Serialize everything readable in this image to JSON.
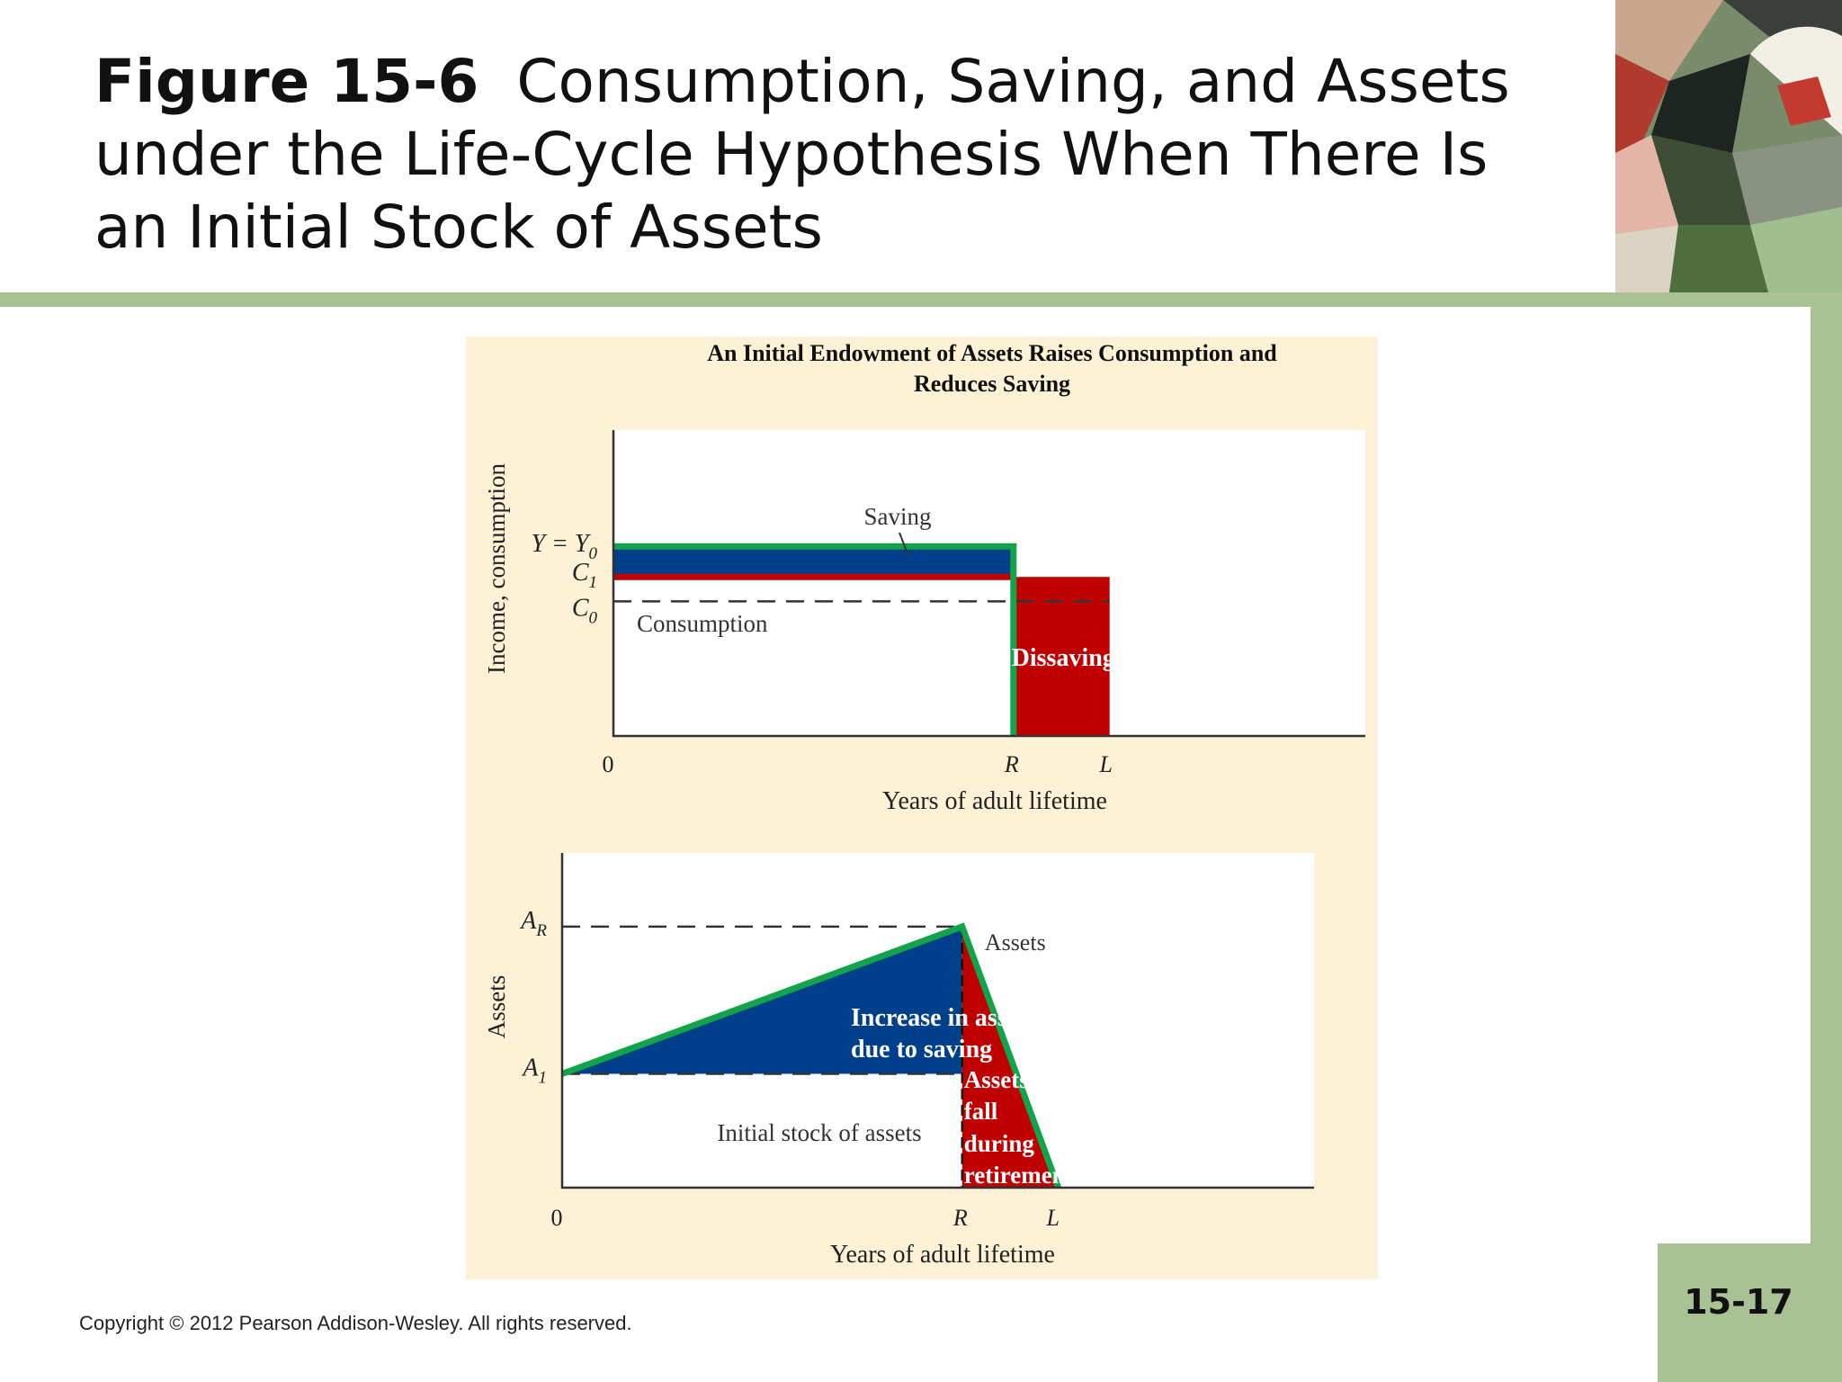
{
  "slide": {
    "figure_number": "Figure 15-6",
    "title_line1": "Consumption, Saving, and Assets",
    "title_line2": "under the Life-Cycle Hypothesis When There Is",
    "title_line3": "an Initial Stock of Assets",
    "page_number": "15-17",
    "copyright": "Copyright © 2012 Pearson Addison-Wesley. All rights reserved."
  },
  "colors": {
    "panel_bg": "#fdf2d6",
    "saving_blue": "#003f8a",
    "dissaving_red": "#c00000",
    "line_green": "#13a34b",
    "accent_green": "#a9c295"
  },
  "chart_data": [
    {
      "type": "area",
      "title_line1": "An Initial Endowment of Assets Raises Consumption and",
      "title_line2": "Reduces Saving",
      "xlabel": "Years of adult lifetime",
      "ylabel": "Income, consumption",
      "x_ticks": {
        "zero": "0",
        "r": "R",
        "l": "L"
      },
      "x_positions": {
        "zero": 0,
        "r": 0.695,
        "l": 0.862
      },
      "y_levels": {
        "income": 0.62,
        "c1": 0.52,
        "c0": 0.44
      },
      "y_labels": {
        "income": "Y = Y",
        "income_sub": "0",
        "c1": "C",
        "c1_sub": "1",
        "c0": "C",
        "c0_sub": "0"
      },
      "annotations": {
        "saving": "Saving",
        "consumption": "Consumption",
        "dissaving": "Dissaving"
      }
    },
    {
      "type": "area",
      "xlabel": "Years of adult lifetime",
      "ylabel": "Assets",
      "x_ticks": {
        "zero": "0",
        "r": "R",
        "l": "L"
      },
      "x_positions": {
        "zero": 0,
        "r": 0.695,
        "l": 0.862
      },
      "y_levels": {
        "a1": 0.34,
        "ar": 0.78
      },
      "y_labels": {
        "ar": "A",
        "ar_sub": "R",
        "a1": "A",
        "a1_sub": "1"
      },
      "annotations": {
        "assets": "Assets",
        "increase_line1": "Increase in assets",
        "increase_line2": "due to saving",
        "initial": "Initial stock of assets",
        "fall_line1": "Assets",
        "fall_line2": "fall",
        "fall_line3": "during",
        "fall_line4": "retirement"
      }
    }
  ]
}
